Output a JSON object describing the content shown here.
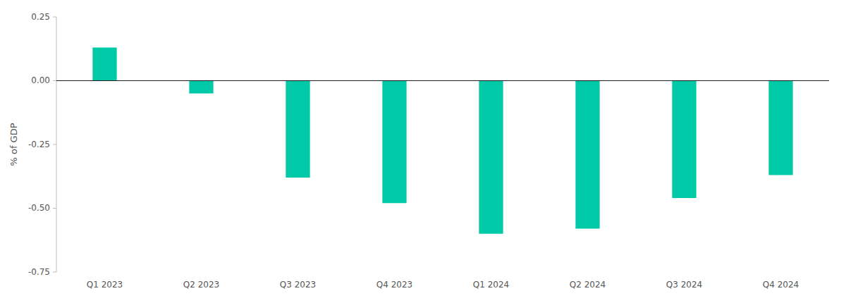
{
  "chart_data": {
    "type": "bar",
    "categories": [
      "Q1 2023",
      "Q2 2023",
      "Q3 2023",
      "Q4 2023",
      "Q1 2024",
      "Q2 2024",
      "Q3 2024",
      "Q4 2024"
    ],
    "values": [
      0.13,
      -0.05,
      -0.38,
      -0.48,
      -0.6,
      -0.58,
      -0.46,
      -0.37
    ],
    "color": "#00C9A7",
    "y_label": "% of GDP",
    "ylim": [
      -0.75,
      0.25
    ],
    "yticks": [
      -0.75,
      {
        "value": -0.5,
        "label": "-0.50"
      },
      -0.25,
      {
        "value": 0,
        "label": "0.00"
      },
      0.25
    ],
    "grid": false
  }
}
